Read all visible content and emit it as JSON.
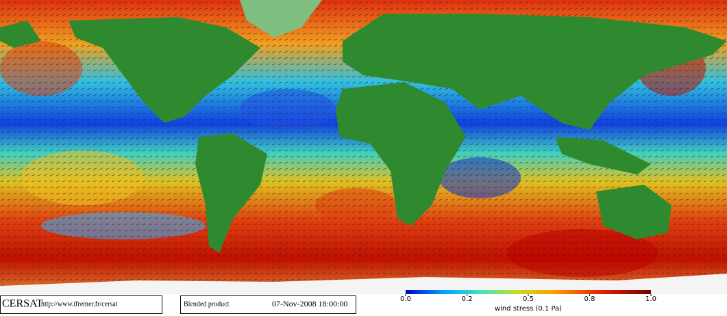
{
  "logo": "CERSAT",
  "url": "http://www.ifremer.fr/cersat",
  "product": "Blended product",
  "timestamp": "07-Nov-2008 18:00:00",
  "colorbar": {
    "ticks": [
      "0.0",
      "0.2",
      "0.5",
      "0.8",
      "1.0"
    ],
    "label": "wind stress (0.1 Pa)"
  }
}
